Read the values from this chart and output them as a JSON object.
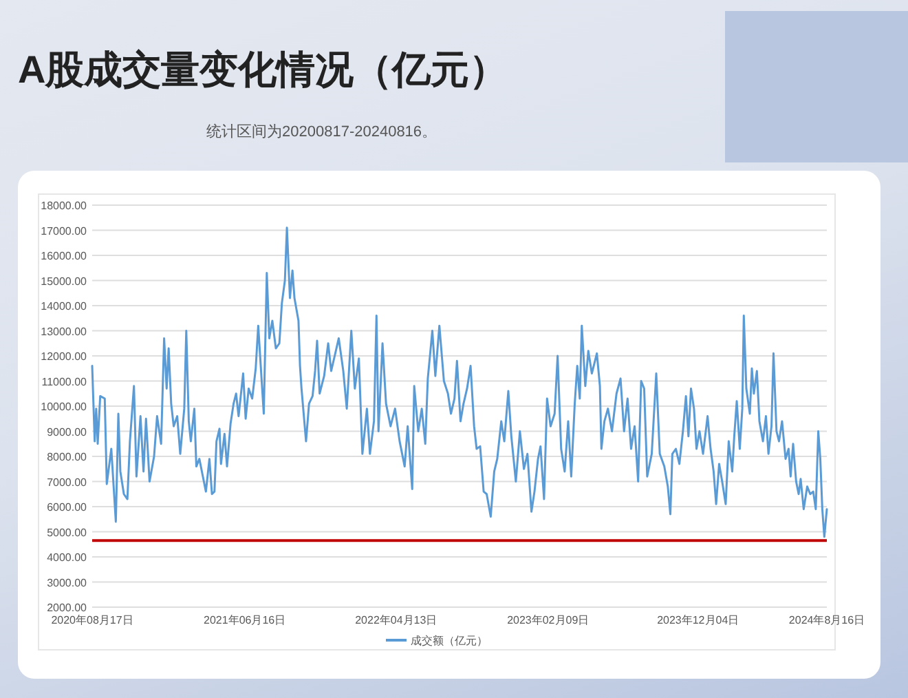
{
  "chart_data": {
    "type": "line",
    "title": "A股成交量变化情况（亿元）",
    "subtitle": "统计区间为20200817-20240816。",
    "x": [
      "2020-08-17",
      "2020-08-22",
      "2020-08-25",
      "2020-08-28",
      "2020-09-02",
      "2020-09-11",
      "2020-09-15",
      "2020-09-24",
      "2020-10-03",
      "2020-10-08",
      "2020-10-12",
      "2020-10-19",
      "2020-10-26",
      "2020-10-31",
      "2020-11-08",
      "2020-11-13",
      "2020-11-21",
      "2020-11-27",
      "2020-12-02",
      "2020-12-09",
      "2020-12-18",
      "2020-12-24",
      "2021-01-01",
      "2021-01-07",
      "2021-01-12",
      "2021-01-16",
      "2021-01-21",
      "2021-01-26",
      "2021-02-02",
      "2021-02-08",
      "2021-02-16",
      "2021-02-20",
      "2021-02-25",
      "2021-03-01",
      "2021-03-08",
      "2021-03-12",
      "2021-03-18",
      "2021-03-25",
      "2021-03-31",
      "2021-04-07",
      "2021-04-12",
      "2021-04-17",
      "2021-04-21",
      "2021-04-27",
      "2021-04-30",
      "2021-05-07",
      "2021-05-12",
      "2021-05-19",
      "2021-05-25",
      "2021-05-30",
      "2021-06-04",
      "2021-06-13",
      "2021-06-18",
      "2021-06-24",
      "2021-07-01",
      "2021-07-08",
      "2021-07-13",
      "2021-07-18",
      "2021-07-24",
      "2021-07-30",
      "2021-08-04",
      "2021-08-10",
      "2021-08-17",
      "2021-08-24",
      "2021-08-29",
      "2021-09-04",
      "2021-09-08",
      "2021-09-14",
      "2021-09-19",
      "2021-09-23",
      "2021-10-01",
      "2021-10-04",
      "2021-10-07",
      "2021-10-16",
      "2021-10-22",
      "2021-10-29",
      "2021-11-03",
      "2021-11-07",
      "2021-11-12",
      "2021-11-21",
      "2021-11-29",
      "2021-12-05",
      "2021-12-12",
      "2021-12-20",
      "2021-12-29",
      "2022-01-05",
      "2022-01-14",
      "2022-01-21",
      "2022-01-29",
      "2022-02-05",
      "2022-02-14",
      "2022-02-20",
      "2022-02-28",
      "2022-03-05",
      "2022-03-09",
      "2022-03-17",
      "2022-03-24",
      "2022-04-02",
      "2022-04-11",
      "2022-04-20",
      "2022-04-30",
      "2022-05-06",
      "2022-05-15",
      "2022-05-19",
      "2022-05-27",
      "2022-06-03",
      "2022-06-10",
      "2022-06-15",
      "2022-06-24",
      "2022-06-30",
      "2022-07-08",
      "2022-07-17",
      "2022-07-25",
      "2022-07-31",
      "2022-08-07",
      "2022-08-12",
      "2022-08-19",
      "2022-08-25",
      "2022-09-01",
      "2022-09-08",
      "2022-09-15",
      "2022-09-20",
      "2022-09-27",
      "2022-10-04",
      "2022-10-10",
      "2022-10-18",
      "2022-10-25",
      "2022-10-31",
      "2022-11-08",
      "2022-11-14",
      "2022-11-22",
      "2022-11-28",
      "2022-12-07",
      "2022-12-15",
      "2022-12-23",
      "2022-12-30",
      "2023-01-07",
      "2023-01-13",
      "2023-01-20",
      "2023-01-25",
      "2023-02-01",
      "2023-02-07",
      "2023-02-14",
      "2023-02-22",
      "2023-02-28",
      "2023-03-07",
      "2023-03-14",
      "2023-03-21",
      "2023-03-27",
      "2023-04-03",
      "2023-04-08",
      "2023-04-13",
      "2023-04-17",
      "2023-04-24",
      "2023-04-30",
      "2023-05-07",
      "2023-05-17",
      "2023-05-23",
      "2023-05-26",
      "2023-06-01",
      "2023-06-08",
      "2023-06-16",
      "2023-06-25",
      "2023-07-03",
      "2023-07-10",
      "2023-07-17",
      "2023-07-24",
      "2023-07-31",
      "2023-08-07",
      "2023-08-13",
      "2023-08-19",
      "2023-08-25",
      "2023-09-03",
      "2023-09-12",
      "2023-09-19",
      "2023-09-28",
      "2023-10-05",
      "2023-10-10",
      "2023-10-14",
      "2023-10-21",
      "2023-10-28",
      "2023-11-04",
      "2023-11-10",
      "2023-11-15",
      "2023-11-20",
      "2023-11-26",
      "2023-12-01",
      "2023-12-07",
      "2023-12-14",
      "2023-12-23",
      "2023-12-29",
      "2024-01-04",
      "2024-01-09",
      "2024-01-15",
      "2024-01-21",
      "2024-01-28",
      "2024-02-03",
      "2024-02-10",
      "2024-02-14",
      "2024-02-19",
      "2024-02-25",
      "2024-03-01",
      "2024-03-04",
      "2024-03-09",
      "2024-03-16",
      "2024-03-20",
      "2024-03-24",
      "2024-03-30",
      "2024-04-04",
      "2024-04-11",
      "2024-04-17",
      "2024-04-22",
      "2024-04-28",
      "2024-05-02",
      "2024-05-08",
      "2024-05-13",
      "2024-05-19",
      "2024-05-26",
      "2024-06-01",
      "2024-06-05",
      "2024-06-10",
      "2024-06-16",
      "2024-06-21",
      "2024-06-25",
      "2024-07-01",
      "2024-07-08",
      "2024-07-14",
      "2024-07-20",
      "2024-07-25",
      "2024-07-30",
      "2024-08-03",
      "2024-08-07",
      "2024-08-11",
      "2024-08-16"
    ],
    "series": [
      {
        "name": "成交额（亿元）",
        "color": "#5b9bd5",
        "values": [
          11600,
          8600,
          9900,
          8500,
          10400,
          10300,
          6900,
          8300,
          5400,
          9700,
          7400,
          6500,
          6300,
          8600,
          10800,
          7200,
          9600,
          7400,
          9500,
          7000,
          8000,
          9600,
          8500,
          12700,
          10700,
          12300,
          10100,
          9200,
          9600,
          8100,
          9900,
          13000,
          9400,
          8600,
          9900,
          7600,
          7900,
          7200,
          6600,
          7900,
          6500,
          6600,
          8600,
          9100,
          7700,
          8900,
          7600,
          9300,
          10100,
          10500,
          9600,
          11300,
          9500,
          10700,
          10300,
          11500,
          13200,
          11600,
          9700,
          15300,
          12700,
          13400,
          12300,
          12500,
          14100,
          15000,
          17100,
          14300,
          15400,
          14300,
          13400,
          11600,
          10700,
          8600,
          10100,
          10400,
          11400,
          12600,
          10500,
          11200,
          12500,
          11400,
          12000,
          12700,
          11400,
          9900,
          13000,
          10700,
          11900,
          8100,
          9900,
          8100,
          9400,
          13600,
          9000,
          12500,
          10100,
          9200,
          9900,
          8600,
          7600,
          9200,
          6700,
          10800,
          9000,
          9900,
          8500,
          11100,
          13000,
          11200,
          13200,
          11000,
          10500,
          9700,
          10300,
          11800,
          9400,
          10100,
          10700,
          11600,
          9200,
          8300,
          8400,
          6600,
          6500,
          5600,
          7400,
          7900,
          9400,
          8600,
          10600,
          8800,
          7000,
          9000,
          7500,
          8100,
          5800,
          6600,
          7900,
          8400,
          6300,
          10300,
          9200,
          9700,
          12000,
          8300,
          7400,
          9400,
          7200,
          10100,
          11600,
          10300,
          13200,
          10800,
          12200,
          11300,
          12100,
          10800,
          8300,
          9400,
          9900,
          9000,
          10500,
          11100,
          9000,
          10300,
          8300,
          9200,
          7000,
          11000,
          10700,
          7200,
          8100,
          11300,
          8100,
          7600,
          6800,
          5700,
          8100,
          8300,
          7700,
          9000,
          10400,
          8800,
          10700,
          9900,
          8300,
          9000,
          8100,
          9600,
          8300,
          7400,
          6100,
          7700,
          7000,
          6100,
          8600,
          7400,
          8800,
          10200,
          8300,
          9900,
          13600,
          10700,
          9700,
          11500,
          10500,
          11400,
          9400,
          8600,
          9600,
          8100,
          9200,
          12100,
          9000,
          8600,
          9400,
          7900,
          8300,
          7200,
          8500,
          7000,
          6500,
          7100,
          5900,
          6800,
          6500,
          6600,
          5900,
          9000,
          7900,
          5900,
          4800,
          5900
        ]
      }
    ],
    "xlim": [
      "2020-08-17",
      "2024-08-16"
    ],
    "xticks": [
      {
        "value": "2020-08-17",
        "label": "2020年08月17日"
      },
      {
        "value": "2021-06-16",
        "label": "2021年06月16日"
      },
      {
        "value": "2022-04-13",
        "label": "2022年04月13日"
      },
      {
        "value": "2023-02-09",
        "label": "2023年02月09日"
      },
      {
        "value": "2023-12-04",
        "label": "2023年12月04日"
      },
      {
        "value": "2024-08-16",
        "label": "2024年8月16日"
      }
    ],
    "ylim": [
      2000,
      18000
    ],
    "yticks": [
      {
        "value": 2000,
        "label": "2000.00"
      },
      {
        "value": 3000,
        "label": "3000.00"
      },
      {
        "value": 4000,
        "label": "4000.00"
      },
      {
        "value": 5000,
        "label": "5000.00"
      },
      {
        "value": 6000,
        "label": "6000.00"
      },
      {
        "value": 7000,
        "label": "7000.00"
      },
      {
        "value": 8000,
        "label": "8000.00"
      },
      {
        "value": 9000,
        "label": "9000.00"
      },
      {
        "value": 10000,
        "label": "10000.00"
      },
      {
        "value": 11000,
        "label": "11000.00"
      },
      {
        "value": 12000,
        "label": "12000.00"
      },
      {
        "value": 13000,
        "label": "13000.00"
      },
      {
        "value": 14000,
        "label": "14000.00"
      },
      {
        "value": 15000,
        "label": "15000.00"
      },
      {
        "value": 16000,
        "label": "16000.00"
      },
      {
        "value": 17000,
        "label": "17000.00"
      },
      {
        "value": 18000,
        "label": "18000.00"
      }
    ],
    "grid": "y",
    "legend": "bottom",
    "line_style": "solid",
    "ref_lines": [
      {
        "axis": "y",
        "value": 4650,
        "color": "#c00000"
      }
    ]
  }
}
